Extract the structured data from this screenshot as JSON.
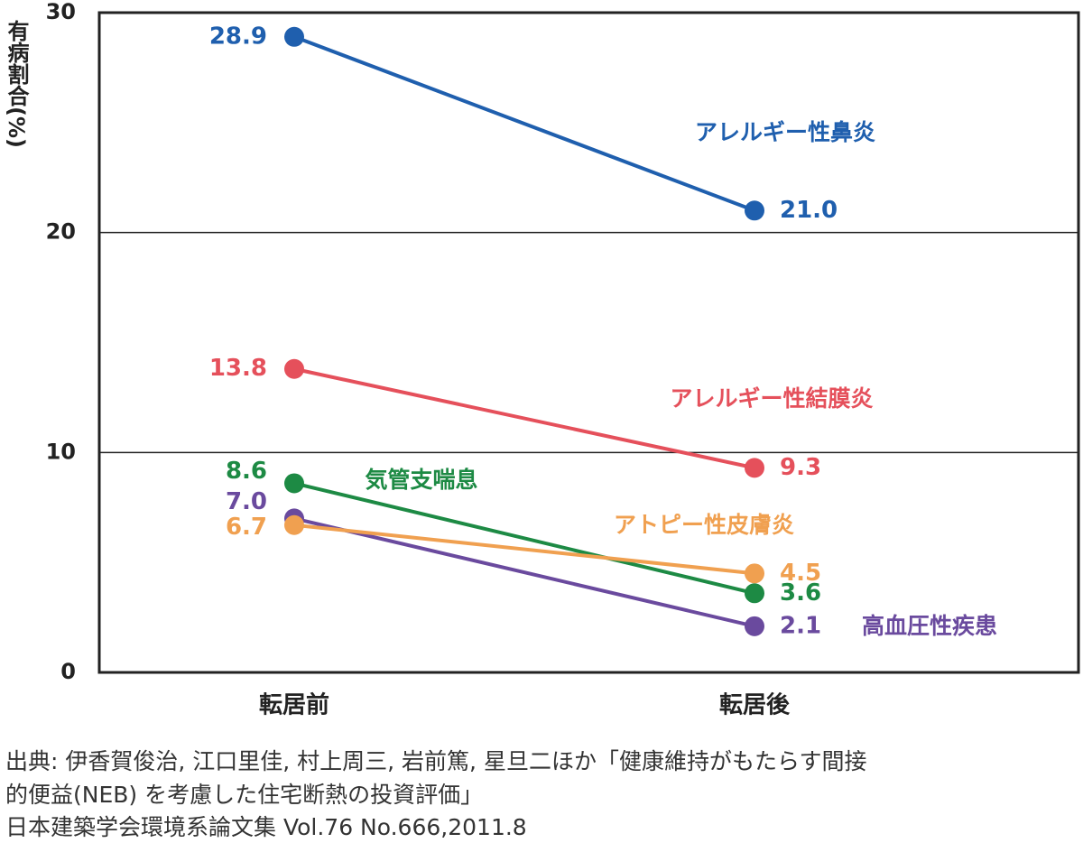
{
  "chart_data": {
    "type": "line",
    "y_label": "有病割合(%)",
    "categories": [
      "転居前",
      "転居後"
    ],
    "series": [
      {
        "name": "アレルギー性鼻炎",
        "color": "#1f5fae",
        "values": [
          28.9,
          21.0
        ],
        "value_labels": [
          "28.9",
          "21.0"
        ]
      },
      {
        "name": "アレルギー性結膜炎",
        "color": "#e5505b",
        "values": [
          13.8,
          9.3
        ],
        "value_labels": [
          "13.8",
          "9.3"
        ]
      },
      {
        "name": "気管支喘息",
        "color": "#1d8a44",
        "values": [
          8.6,
          3.6
        ],
        "value_labels": [
          "8.6",
          "3.6"
        ]
      },
      {
        "name": "高血圧性疾患",
        "color": "#6a4a9e",
        "values": [
          7.0,
          2.1
        ],
        "value_labels": [
          "7.0",
          "2.1"
        ]
      },
      {
        "name": "アトピー性皮膚炎",
        "color": "#f0a050",
        "values": [
          6.7,
          4.5
        ],
        "value_labels": [
          "6.7",
          "4.5"
        ]
      }
    ],
    "ylim": [
      0,
      30
    ],
    "yticks": [
      0,
      10,
      20,
      30
    ],
    "grid": true,
    "source": [
      "出典: 伊香賀俊治, 江口里佳, 村上周三, 岩前篤, 星旦二ほか「健康維持がもたらす間接",
      "的便益(NEB) を考慮した住宅断熱の投資評価」",
      "日本建築学会環境系論文集 Vol.76 No.666,2011.8"
    ]
  }
}
